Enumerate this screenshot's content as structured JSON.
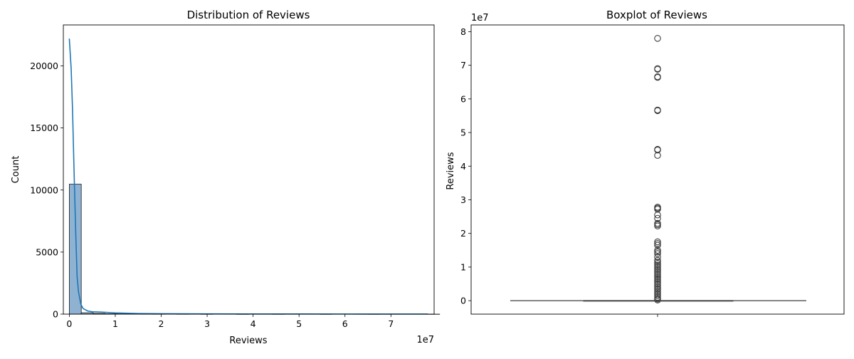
{
  "chart_data": [
    {
      "type": "histogram",
      "title": "Distribution of Reviews",
      "xlabel": "Reviews",
      "ylabel": "Count",
      "x_scale_label": "1e7",
      "xlim": [
        -0.13,
        7.94
      ],
      "ylim": [
        0,
        23300
      ],
      "x_ticks": [
        0,
        1,
        2,
        3,
        4,
        5,
        6,
        7
      ],
      "x_tick_labels": [
        "0",
        "1",
        "2",
        "3",
        "4",
        "5",
        "6",
        "7"
      ],
      "y_ticks": [
        0,
        5000,
        10000,
        15000,
        20000
      ],
      "y_tick_labels": [
        "0",
        "5000",
        "10000",
        "15000",
        "20000"
      ],
      "bin_width": 0.26,
      "bins": [
        {
          "x0": 0.0,
          "count": 10470
        },
        {
          "x0": 0.26,
          "count": 110
        },
        {
          "x0": 0.52,
          "count": 55
        },
        {
          "x0": 0.78,
          "count": 30
        },
        {
          "x0": 1.04,
          "count": 25
        },
        {
          "x0": 1.3,
          "count": 15
        },
        {
          "x0": 1.56,
          "count": 10
        },
        {
          "x0": 1.82,
          "count": 8
        },
        {
          "x0": 2.08,
          "count": 12
        },
        {
          "x0": 2.34,
          "count": 6
        },
        {
          "x0": 2.6,
          "count": 10
        },
        {
          "x0": 2.86,
          "count": 3
        },
        {
          "x0": 3.64,
          "count": 2
        },
        {
          "x0": 4.42,
          "count": 4
        },
        {
          "x0": 5.46,
          "count": 3
        },
        {
          "x0": 6.5,
          "count": 5
        },
        {
          "x0": 7.8,
          "count": 1
        }
      ],
      "kde": {
        "name": "kde",
        "x": [
          0.0,
          0.04,
          0.07,
          0.1,
          0.14,
          0.17,
          0.2,
          0.25,
          0.3,
          0.4,
          0.5,
          0.7,
          1.0,
          1.5,
          2.0,
          3.0,
          4.0,
          5.0,
          6.0,
          7.0,
          7.8
        ],
        "y": [
          22200,
          19800,
          16500,
          12000,
          6500,
          3000,
          1800,
          800,
          450,
          250,
          190,
          160,
          100,
          45,
          30,
          18,
          12,
          9,
          7,
          4,
          2
        ]
      },
      "colors": {
        "bar_fill": "#8fb2d3",
        "bar_edge": "#1a1a1a",
        "kde_line": "#1f77b4"
      }
    },
    {
      "type": "boxplot",
      "title": "Boxplot of Reviews",
      "ylabel": "Reviews",
      "y_scale_label": "1e7",
      "ylim": [
        -0.4,
        8.2
      ],
      "y_ticks": [
        0,
        1,
        2,
        3,
        4,
        5,
        6,
        7,
        8
      ],
      "y_tick_labels": [
        "0",
        "1",
        "2",
        "3",
        "4",
        "5",
        "6",
        "7",
        "8"
      ],
      "box": {
        "q1": 0.0,
        "median": 0.0,
        "q3": 0.0,
        "whisker_low": 0.0,
        "whisker_high": 0.0
      },
      "outliers": [
        7.8,
        6.9,
        6.88,
        6.66,
        6.64,
        5.67,
        5.65,
        4.5,
        4.48,
        4.32,
        2.78,
        2.75,
        2.72,
        2.55,
        2.45,
        2.3,
        2.26,
        2.22,
        1.75,
        1.7,
        1.65,
        1.5,
        1.45,
        1.4,
        1.3,
        1.2,
        1.15,
        1.1,
        1.05,
        1.0,
        0.95,
        0.9,
        0.85,
        0.8,
        0.75,
        0.7,
        0.65,
        0.6,
        0.55,
        0.5,
        0.45,
        0.4,
        0.35,
        0.3,
        0.25,
        0.2,
        0.15,
        0.1,
        0.05,
        0.02
      ],
      "colors": {
        "line": "#3d3d3d",
        "box_fill": "#1f77b4"
      }
    }
  ]
}
